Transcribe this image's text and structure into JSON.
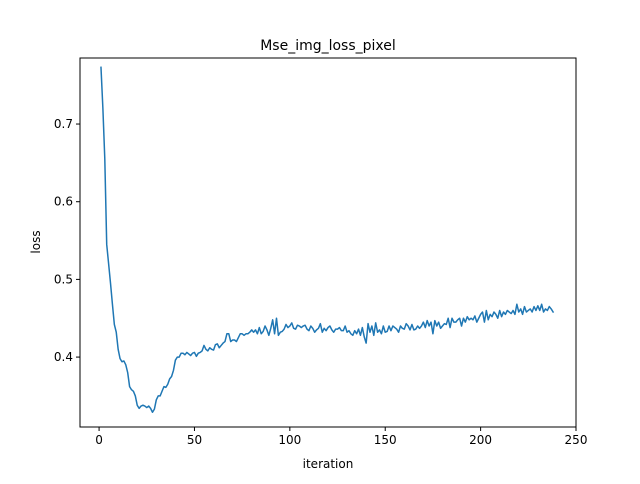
{
  "chart_data": {
    "type": "line",
    "title": "Mse_img_loss_pixel",
    "xlabel": "iteration",
    "ylabel": "loss",
    "xlim": [
      -10,
      250
    ],
    "ylim": [
      0.31,
      0.785
    ],
    "xticks": [
      0,
      50,
      100,
      150,
      200,
      250
    ],
    "yticks": [
      0.4,
      0.5,
      0.6,
      0.7
    ],
    "grid": false,
    "legend": "none",
    "line_color": "#1f77b4",
    "series": [
      {
        "x": [
          1,
          2,
          3,
          4,
          5,
          6,
          7,
          8,
          9,
          10,
          11,
          12,
          13,
          14,
          15,
          16,
          17,
          18,
          19,
          20,
          21,
          22,
          23,
          24,
          25,
          26,
          27,
          28,
          29,
          30,
          31,
          32,
          33,
          34,
          35,
          36,
          37,
          38,
          39,
          40,
          41,
          42,
          43,
          44,
          45,
          46,
          47,
          48,
          49,
          50,
          51,
          52,
          53,
          54,
          55,
          56,
          57,
          58,
          59,
          60,
          61,
          62,
          63,
          64,
          65,
          66,
          67,
          68,
          69,
          70,
          71,
          72,
          73,
          74,
          75,
          76,
          77,
          78,
          79,
          80,
          81,
          82,
          83,
          84,
          85,
          86,
          87,
          88,
          89,
          90,
          91,
          92,
          93,
          94,
          95,
          96,
          97,
          98,
          99,
          100,
          101,
          102,
          103,
          104,
          105,
          106,
          107,
          108,
          109,
          110,
          111,
          112,
          113,
          114,
          115,
          116,
          117,
          118,
          119,
          120,
          121,
          122,
          123,
          124,
          125,
          126,
          127,
          128,
          129,
          130,
          131,
          132,
          133,
          134,
          135,
          136,
          137,
          138,
          139,
          140,
          141,
          142,
          143,
          144,
          145,
          146,
          147,
          148,
          149,
          150,
          151,
          152,
          153,
          154,
          155,
          156,
          157,
          158,
          159,
          160,
          161,
          162,
          163,
          164,
          165,
          166,
          167,
          168,
          169,
          170,
          171,
          172,
          173,
          174,
          175,
          176,
          177,
          178,
          179,
          180,
          181,
          182,
          183,
          184,
          185,
          186,
          187,
          188,
          189,
          190,
          191,
          192,
          193,
          194,
          195,
          196,
          197,
          198,
          199,
          200,
          201,
          202,
          203,
          204,
          205,
          206,
          207,
          208,
          209,
          210,
          211,
          212,
          213,
          214,
          215,
          216,
          217,
          218,
          219,
          220,
          221,
          222,
          223,
          224,
          225,
          226,
          227,
          228,
          229,
          230,
          231,
          232,
          233,
          234,
          235,
          236,
          237,
          238
        ],
        "y": [
          0.773,
          0.72,
          0.655,
          0.545,
          0.52,
          0.495,
          0.468,
          0.442,
          0.432,
          0.41,
          0.398,
          0.394,
          0.395,
          0.39,
          0.38,
          0.362,
          0.358,
          0.356,
          0.35,
          0.338,
          0.334,
          0.337,
          0.338,
          0.337,
          0.335,
          0.337,
          0.334,
          0.329,
          0.333,
          0.345,
          0.35,
          0.35,
          0.356,
          0.362,
          0.361,
          0.365,
          0.372,
          0.375,
          0.383,
          0.396,
          0.4,
          0.4,
          0.405,
          0.405,
          0.403,
          0.406,
          0.404,
          0.402,
          0.405,
          0.406,
          0.401,
          0.405,
          0.406,
          0.408,
          0.415,
          0.41,
          0.408,
          0.412,
          0.41,
          0.409,
          0.416,
          0.417,
          0.412,
          0.415,
          0.418,
          0.42,
          0.43,
          0.43,
          0.42,
          0.422,
          0.422,
          0.42,
          0.425,
          0.43,
          0.43,
          0.428,
          0.43,
          0.43,
          0.432,
          0.435,
          0.432,
          0.435,
          0.43,
          0.438,
          0.43,
          0.433,
          0.44,
          0.435,
          0.428,
          0.437,
          0.448,
          0.43,
          0.45,
          0.428,
          0.432,
          0.433,
          0.436,
          0.442,
          0.438,
          0.44,
          0.444,
          0.437,
          0.436,
          0.441,
          0.44,
          0.438,
          0.44,
          0.441,
          0.436,
          0.434,
          0.44,
          0.437,
          0.432,
          0.435,
          0.437,
          0.443,
          0.432,
          0.437,
          0.434,
          0.438,
          0.44,
          0.435,
          0.432,
          0.436,
          0.436,
          0.438,
          0.434,
          0.434,
          0.44,
          0.432,
          0.434,
          0.43,
          0.428,
          0.434,
          0.43,
          0.436,
          0.428,
          0.438,
          0.426,
          0.418,
          0.443,
          0.432,
          0.44,
          0.428,
          0.444,
          0.432,
          0.435,
          0.43,
          0.44,
          0.432,
          0.433,
          0.44,
          0.434,
          0.44,
          0.438,
          0.436,
          0.432,
          0.44,
          0.437,
          0.436,
          0.443,
          0.44,
          0.435,
          0.442,
          0.435,
          0.436,
          0.44,
          0.437,
          0.44,
          0.445,
          0.438,
          0.447,
          0.44,
          0.445,
          0.43,
          0.447,
          0.44,
          0.445,
          0.437,
          0.44,
          0.443,
          0.442,
          0.45,
          0.438,
          0.45,
          0.445,
          0.445,
          0.448,
          0.45,
          0.44,
          0.45,
          0.445,
          0.452,
          0.448,
          0.45,
          0.448,
          0.453,
          0.445,
          0.45,
          0.455,
          0.458,
          0.445,
          0.46,
          0.448,
          0.455,
          0.452,
          0.458,
          0.455,
          0.45,
          0.46,
          0.452,
          0.458,
          0.455,
          0.46,
          0.458,
          0.456,
          0.46,
          0.455,
          0.468,
          0.458,
          0.462,
          0.455,
          0.465,
          0.458,
          0.46,
          0.462,
          0.458,
          0.465,
          0.46,
          0.466,
          0.46,
          0.468,
          0.458,
          0.462,
          0.46,
          0.465,
          0.462,
          0.458
        ]
      }
    ]
  }
}
